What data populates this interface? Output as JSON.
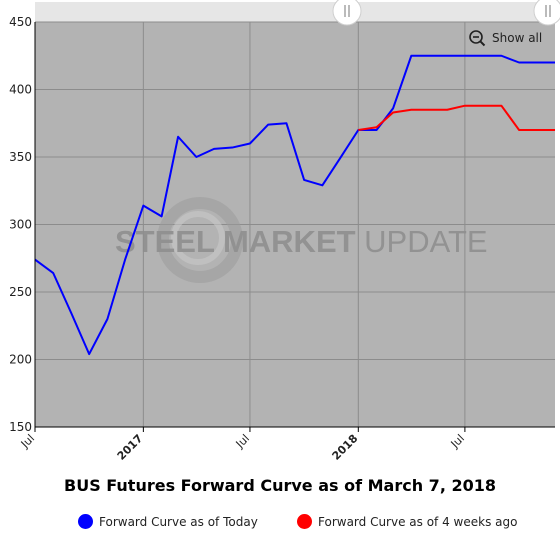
{
  "chart_data": {
    "type": "line",
    "title": "BUS Futures Forward Curve as of March 7, 2018",
    "xlabel": "",
    "ylabel": "",
    "ylim": [
      150,
      450
    ],
    "y_ticks": [
      150,
      200,
      250,
      300,
      350,
      400,
      450
    ],
    "x_range": [
      "2016-07-01",
      "2018-12-01"
    ],
    "x_ticks": [
      {
        "date": "2016-07-01",
        "label": "Jul",
        "bold": false
      },
      {
        "date": "2017-01-01",
        "label": "2017",
        "bold": true
      },
      {
        "date": "2017-07-01",
        "label": "Jul",
        "bold": false
      },
      {
        "date": "2018-01-01",
        "label": "2018",
        "bold": true
      },
      {
        "date": "2018-07-01",
        "label": "Jul",
        "bold": false
      }
    ],
    "grid": true,
    "legend_position": "bottom",
    "series": [
      {
        "name": "Forward Curve as of Today",
        "color": "#0000ff",
        "points": [
          {
            "x": "2016-07-01",
            "y": 274
          },
          {
            "x": "2016-08-01",
            "y": 264
          },
          {
            "x": "2016-09-01",
            "y": 234
          },
          {
            "x": "2016-10-01",
            "y": 204
          },
          {
            "x": "2016-11-01",
            "y": 230
          },
          {
            "x": "2016-12-01",
            "y": 274
          },
          {
            "x": "2017-01-01",
            "y": 314
          },
          {
            "x": "2017-02-01",
            "y": 306
          },
          {
            "x": "2017-03-01",
            "y": 365
          },
          {
            "x": "2017-04-01",
            "y": 350
          },
          {
            "x": "2017-05-01",
            "y": 356
          },
          {
            "x": "2017-06-01",
            "y": 357
          },
          {
            "x": "2017-07-01",
            "y": 360
          },
          {
            "x": "2017-08-01",
            "y": 374
          },
          {
            "x": "2017-09-01",
            "y": 375
          },
          {
            "x": "2017-10-01",
            "y": 333
          },
          {
            "x": "2017-11-01",
            "y": 329
          },
          {
            "x": "2017-12-01",
            "y": 349
          },
          {
            "x": "2018-01-01",
            "y": 370
          },
          {
            "x": "2018-02-01",
            "y": 370
          },
          {
            "x": "2018-03-01",
            "y": 386
          },
          {
            "x": "2018-04-01",
            "y": 425
          },
          {
            "x": "2018-05-01",
            "y": 425
          },
          {
            "x": "2018-06-01",
            "y": 425
          },
          {
            "x": "2018-07-01",
            "y": 425
          },
          {
            "x": "2018-08-01",
            "y": 425
          },
          {
            "x": "2018-09-01",
            "y": 425
          },
          {
            "x": "2018-10-01",
            "y": 420
          },
          {
            "x": "2018-11-01",
            "y": 420
          },
          {
            "x": "2018-12-01",
            "y": 420
          }
        ]
      },
      {
        "name": "Forward Curve as of 4 weeks ago",
        "color": "#ff0000",
        "points": [
          {
            "x": "2018-01-01",
            "y": 370
          },
          {
            "x": "2018-02-01",
            "y": 372
          },
          {
            "x": "2018-03-01",
            "y": 383
          },
          {
            "x": "2018-04-01",
            "y": 385
          },
          {
            "x": "2018-05-01",
            "y": 385
          },
          {
            "x": "2018-06-01",
            "y": 385
          },
          {
            "x": "2018-07-01",
            "y": 388
          },
          {
            "x": "2018-08-01",
            "y": 388
          },
          {
            "x": "2018-09-01",
            "y": 388
          },
          {
            "x": "2018-10-01",
            "y": 370
          },
          {
            "x": "2018-11-01",
            "y": 370
          },
          {
            "x": "2018-12-01",
            "y": 370
          }
        ]
      }
    ],
    "watermark": "STEEL MARKET UPDATE"
  },
  "controls": {
    "show_all_label": "Show all",
    "zoom_icon": "zoom-out-icon",
    "navigator_handle_icon": "grip-handle-icon"
  },
  "colors": {
    "plot_background": "#b3b3b3",
    "navigator_background": "#e6e6e6",
    "grid": "#8c8c8c"
  }
}
